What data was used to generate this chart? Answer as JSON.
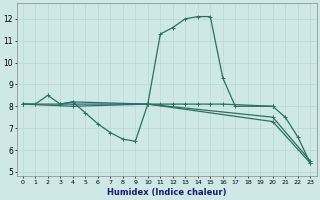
{
  "xlabel": "Humidex (Indice chaleur)",
  "bg_color": "#cde8e5",
  "grid_color": "#b8d8d4",
  "line_color": "#2d6e65",
  "xlim": [
    -0.5,
    23.5
  ],
  "ylim": [
    4.8,
    12.7
  ],
  "xticks": [
    0,
    1,
    2,
    3,
    4,
    5,
    6,
    7,
    8,
    9,
    10,
    11,
    12,
    13,
    14,
    15,
    16,
    17,
    18,
    19,
    20,
    21,
    22,
    23
  ],
  "yticks": [
    5,
    6,
    7,
    8,
    9,
    10,
    11,
    12
  ],
  "line1_x": [
    0,
    1,
    2,
    3,
    4,
    10,
    11,
    12,
    13,
    14,
    15,
    16,
    20
  ],
  "line1_y": [
    8.1,
    8.1,
    8.5,
    8.1,
    8.2,
    8.1,
    8.1,
    8.1,
    8.1,
    8.1,
    8.1,
    8.1,
    8.0
  ],
  "line2_x": [
    3,
    4,
    5,
    6,
    7,
    8,
    9,
    10,
    11,
    12,
    13,
    14,
    15,
    16,
    17,
    20,
    21,
    22,
    23
  ],
  "line2_y": [
    8.1,
    8.2,
    7.7,
    7.2,
    6.8,
    6.5,
    6.4,
    8.1,
    11.3,
    11.6,
    12.0,
    12.1,
    12.1,
    9.3,
    8.0,
    8.0,
    7.5,
    6.6,
    5.4
  ],
  "line3_x": [
    0,
    4,
    10,
    20,
    23
  ],
  "line3_y": [
    8.1,
    8.1,
    8.1,
    7.5,
    5.5
  ],
  "line4_x": [
    0,
    4,
    10,
    20,
    23
  ],
  "line4_y": [
    8.1,
    8.0,
    8.1,
    7.3,
    5.4
  ],
  "marker_size": 2.5,
  "line_width": 0.9
}
